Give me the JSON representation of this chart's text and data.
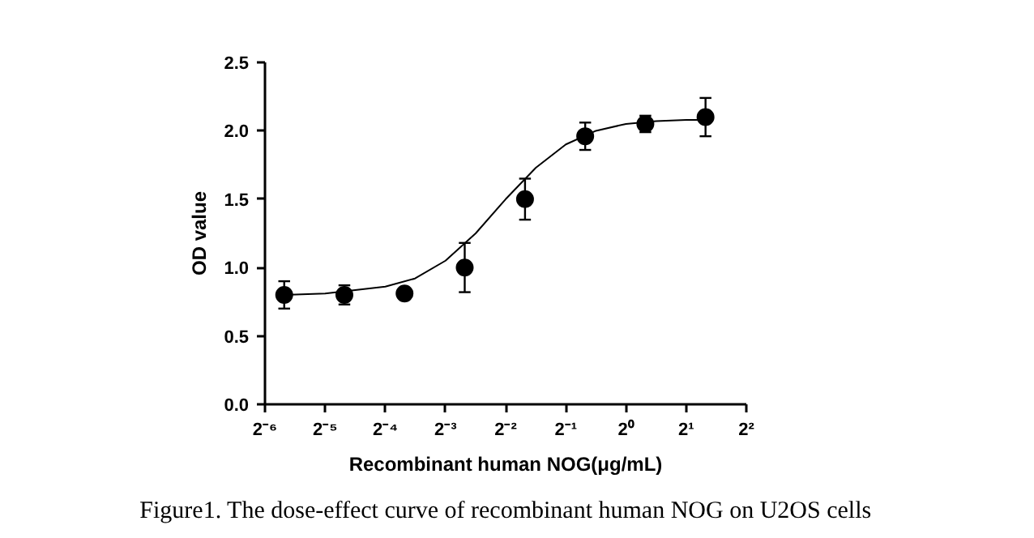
{
  "chart_data": {
    "type": "scatter",
    "xlabel": "Recombinant human NOG(μg/mL)",
    "ylabel": "OD value",
    "annotations": [
      "Figure1. The dose-effect curve of recombinant human NOG on U2OS cells"
    ],
    "log": "x",
    "grid": false,
    "marker": "circle",
    "xlim": [
      0.015625,
      4
    ],
    "xticks": [
      {
        "value": 0.015625,
        "label": "2⁻⁶"
      },
      {
        "value": 0.03125,
        "label": "2⁻⁵"
      },
      {
        "value": 0.0625,
        "label": "2⁻⁴"
      },
      {
        "value": 0.125,
        "label": "2⁻³"
      },
      {
        "value": 0.25,
        "label": "2⁻²"
      },
      {
        "value": 0.5,
        "label": "2⁻¹"
      },
      {
        "value": 1,
        "label": "2⁰"
      },
      {
        "value": 2,
        "label": "2¹"
      },
      {
        "value": 4,
        "label": "2²"
      }
    ],
    "ylim": [
      0,
      2.5
    ],
    "yticks": [
      {
        "value": 0,
        "label": "0.0"
      },
      {
        "value": 0.5,
        "label": "0.5"
      },
      {
        "value": 1,
        "label": "1.0"
      },
      {
        "value": 1.5,
        "label": "1.5"
      },
      {
        "value": 2,
        "label": "2.0"
      },
      {
        "value": 2.5,
        "label": "2.5"
      }
    ],
    "series": [
      {
        "color": "#000000",
        "x": [
          0.0195,
          0.039,
          0.078,
          0.156,
          0.3125,
          0.625,
          1.25,
          2.5
        ],
        "values": [
          0.8,
          0.8,
          0.81,
          1.0,
          1.5,
          1.96,
          2.05,
          2.1
        ],
        "errors": [
          0.1,
          0.07,
          0.02,
          0.18,
          0.15,
          0.1,
          0.06,
          0.14
        ]
      },
      {
        "type": "line",
        "color": "#000000",
        "marker": "none",
        "x": [
          0.0195,
          0.03125,
          0.0625,
          0.088,
          0.125,
          0.177,
          0.25,
          0.354,
          0.5,
          0.707,
          1,
          1.414,
          2,
          2.5
        ],
        "values": [
          0.8,
          0.81,
          0.86,
          0.92,
          1.05,
          1.25,
          1.5,
          1.73,
          1.9,
          2.0,
          2.05,
          2.07,
          2.08,
          2.08
        ]
      }
    ]
  }
}
